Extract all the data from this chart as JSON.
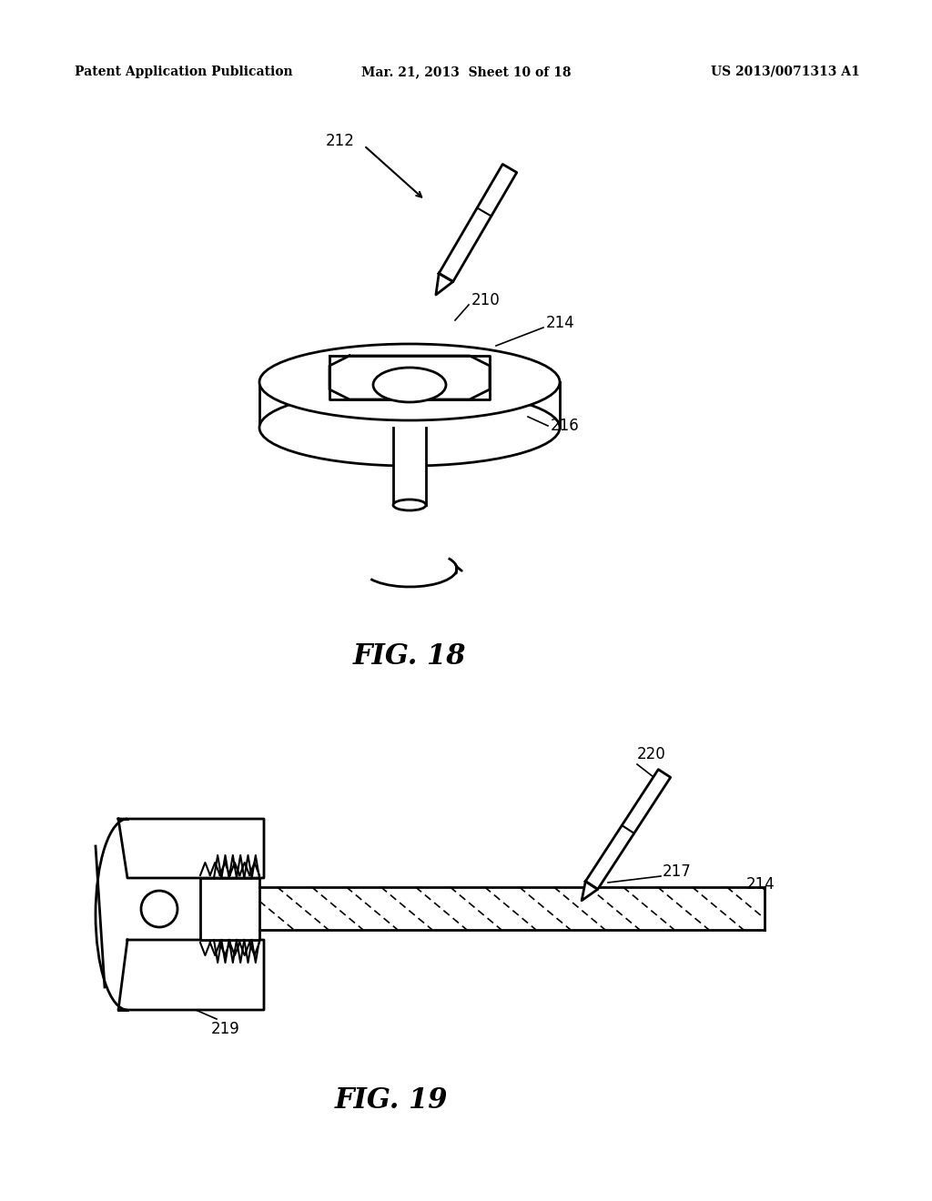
{
  "background_color": "#ffffff",
  "header_left": "Patent Application Publication",
  "header_center": "Mar. 21, 2013  Sheet 10 of 18",
  "header_right": "US 2013/0071313 A1",
  "fig18_label": "FIG. 18",
  "fig19_label": "FIG. 19"
}
